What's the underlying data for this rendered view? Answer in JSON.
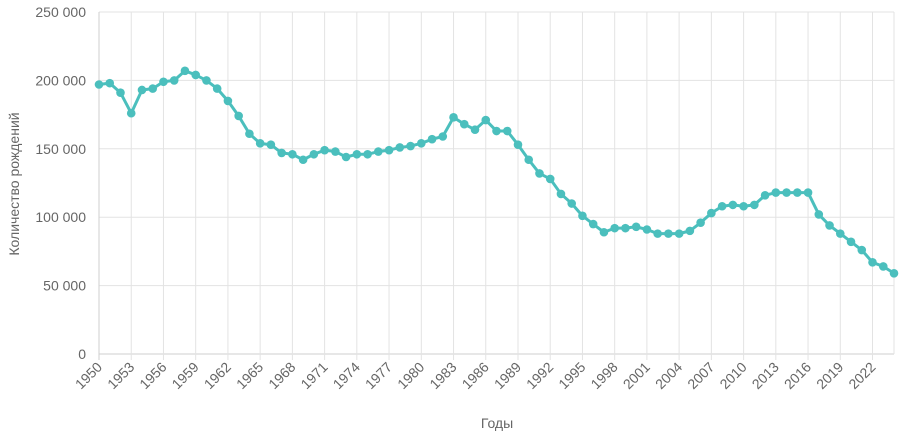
{
  "chart_data": {
    "type": "line",
    "title": "",
    "xlabel": "Годы",
    "ylabel": "Количество рождений",
    "ylim": [
      0,
      250000
    ],
    "yticks": [
      0,
      50000,
      100000,
      150000,
      200000,
      250000
    ],
    "ytick_labels": [
      "0",
      "50 000",
      "100 000",
      "150 000",
      "200 000",
      "250 000"
    ],
    "xlim": [
      1950,
      2024
    ],
    "xtick_labels": [
      "1950",
      "1953",
      "1956",
      "1959",
      "1962",
      "1965",
      "1968",
      "1971",
      "1974",
      "1977",
      "1980",
      "1983",
      "1986",
      "1989",
      "1992",
      "1995",
      "1998",
      "2001",
      "2004",
      "2007",
      "2010",
      "2013",
      "2016",
      "2019",
      "2022"
    ],
    "grid": true,
    "series_color": "#4bbfbd",
    "x": [
      1950,
      1951,
      1952,
      1953,
      1954,
      1955,
      1956,
      1957,
      1958,
      1959,
      1960,
      1961,
      1962,
      1963,
      1964,
      1965,
      1966,
      1967,
      1968,
      1969,
      1970,
      1971,
      1972,
      1973,
      1974,
      1975,
      1976,
      1977,
      1978,
      1979,
      1980,
      1981,
      1982,
      1983,
      1984,
      1985,
      1986,
      1987,
      1988,
      1989,
      1990,
      1991,
      1992,
      1993,
      1994,
      1995,
      1996,
      1997,
      1998,
      1999,
      2000,
      2001,
      2002,
      2003,
      2004,
      2005,
      2006,
      2007,
      2008,
      2009,
      2010,
      2011,
      2012,
      2013,
      2014,
      2015,
      2016,
      2017,
      2018,
      2019,
      2020,
      2021,
      2022,
      2023,
      2024
    ],
    "series": [
      {
        "values": [
          197000,
          198000,
          191000,
          176000,
          193000,
          194000,
          199000,
          200000,
          207000,
          204000,
          200000,
          194000,
          185000,
          174000,
          161000,
          154000,
          153000,
          147000,
          146000,
          142000,
          146000,
          149000,
          148000,
          144000,
          146000,
          146000,
          148000,
          149000,
          151000,
          152000,
          154000,
          157000,
          159000,
          173000,
          168000,
          164000,
          171000,
          163000,
          163000,
          153000,
          142000,
          132000,
          128000,
          117000,
          110000,
          101000,
          95000,
          89000,
          92000,
          92000,
          93000,
          91000,
          88000,
          88000,
          88000,
          90000,
          96000,
          103000,
          108000,
          109000,
          108000,
          109000,
          116000,
          118000,
          118000,
          118000,
          118000,
          102000,
          94000,
          88000,
          82000,
          76000,
          67000,
          64000,
          59000
        ]
      }
    ]
  }
}
